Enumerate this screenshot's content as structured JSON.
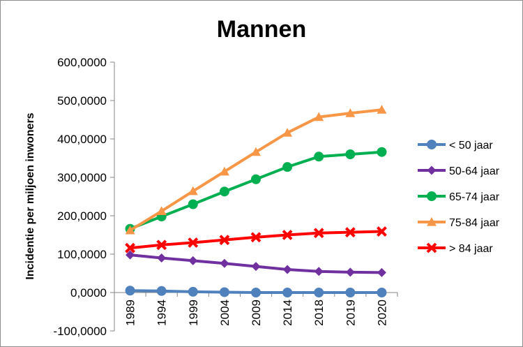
{
  "chart_data": {
    "type": "line",
    "title": "Mannen",
    "xlabel": "",
    "ylabel": "Incidentie per miljoen inwoners",
    "categories": [
      "1989",
      "1994",
      "1999",
      "2004",
      "2009",
      "2014",
      "2018",
      "2019",
      "2020"
    ],
    "ylim": [
      -100,
      600
    ],
    "yticks": [
      "-100,0000",
      "0,0000",
      "100,0000",
      "200,0000",
      "300,0000",
      "400,0000",
      "500,0000",
      "600,0000"
    ],
    "ytick_values": [
      -100,
      0,
      100,
      200,
      300,
      400,
      500,
      600
    ],
    "grid": false,
    "legend": "right",
    "series": [
      {
        "name": "< 50 jaar",
        "color": "#4f81bd",
        "marker": "circle",
        "values": [
          5,
          4,
          2,
          1,
          0,
          0,
          0,
          0,
          0
        ]
      },
      {
        "name": "50-64 jaar",
        "color": "#7030a0",
        "marker": "diamond",
        "values": [
          98,
          90,
          83,
          76,
          68,
          60,
          55,
          53,
          52
        ]
      },
      {
        "name": "65-74 jaar",
        "color": "#00b050",
        "marker": "circle",
        "values": [
          166,
          198,
          230,
          263,
          295,
          327,
          354,
          360,
          366
        ]
      },
      {
        "name": "75-84 jaar",
        "color": "#f79646",
        "marker": "triangle",
        "values": [
          162,
          212,
          264,
          315,
          366,
          416,
          457,
          467,
          476
        ]
      },
      {
        "name": "> 84 jaar",
        "color": "#ff0000",
        "marker": "x",
        "values": [
          116,
          124,
          130,
          137,
          144,
          150,
          155,
          157,
          159
        ]
      }
    ]
  }
}
